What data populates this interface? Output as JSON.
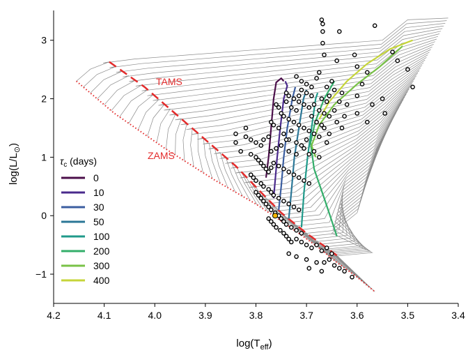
{
  "chart_data": {
    "type": "line",
    "xlabel": {
      "main": "log(T",
      "sub": "eff",
      "close": ")"
    },
    "ylabel": {
      "main": "log(L/L",
      "sub": "⊙",
      "close": ")"
    },
    "xlim": [
      4.2,
      3.4
    ],
    "ylim": [
      -1.5,
      3.45
    ],
    "xticks": [
      "4.2",
      "4.1",
      "4.0",
      "3.9",
      "3.8",
      "3.7",
      "3.6",
      "3.5",
      "3.4"
    ],
    "yticks": [
      "−1",
      "0",
      "1",
      "2",
      "3"
    ],
    "annotations": {
      "tams": "TAMS",
      "zams": "ZAMS"
    },
    "colors": {
      "boundary": "#e32b2b",
      "tracks": "#8a8a8a",
      "sun": "#f4b400"
    },
    "zams_line": [
      [
        4.155,
        2.3
      ],
      [
        4.08,
        1.75
      ],
      [
        3.98,
        1.15
      ],
      [
        3.88,
        0.6
      ],
      [
        3.8,
        0.2
      ],
      [
        3.74,
        -0.15
      ],
      [
        3.68,
        -0.52
      ],
      [
        3.64,
        -0.8
      ],
      [
        3.6,
        -1.05
      ],
      [
        3.565,
        -1.3
      ]
    ],
    "tams_line": [
      [
        4.09,
        2.63
      ],
      [
        4.02,
        2.2
      ],
      [
        3.96,
        1.75
      ],
      [
        3.9,
        1.3
      ],
      [
        3.84,
        0.85
      ],
      [
        3.79,
        0.4
      ],
      [
        3.75,
        0.05
      ],
      [
        3.7,
        -0.3
      ],
      [
        3.66,
        -0.55
      ],
      [
        3.64,
        -0.68
      ]
    ],
    "legend": {
      "title_symbol": "τ",
      "title_sub": "c",
      "title_rest": " (days)",
      "items": [
        {
          "label": "0",
          "color": "#4b0f4a"
        },
        {
          "label": "10",
          "color": "#4a2a8c"
        },
        {
          "label": "30",
          "color": "#3b5ea0"
        },
        {
          "label": "50",
          "color": "#2b7797"
        },
        {
          "label": "100",
          "color": "#1f9a8a"
        },
        {
          "label": "200",
          "color": "#33ae6a"
        },
        {
          "label": "300",
          "color": "#79c247"
        },
        {
          "label": "400",
          "color": "#c6d53a"
        }
      ]
    },
    "series": [
      {
        "name": "0",
        "points": [
          [
            3.78,
            0.65
          ],
          [
            3.775,
            1.0
          ],
          [
            3.77,
            1.5
          ],
          [
            3.765,
            2.0
          ],
          [
            3.76,
            2.28
          ],
          [
            3.75,
            2.35
          ],
          [
            3.745,
            2.3
          ]
        ]
      },
      {
        "name": "10",
        "points": [
          [
            3.765,
            0.3
          ],
          [
            3.762,
            0.6
          ],
          [
            3.758,
            1.0
          ],
          [
            3.752,
            1.5
          ],
          [
            3.745,
            2.0
          ],
          [
            3.738,
            2.22
          ],
          [
            3.742,
            2.3
          ]
        ]
      },
      {
        "name": "30",
        "points": [
          [
            3.755,
            0.1
          ],
          [
            3.75,
            0.5
          ],
          [
            3.745,
            1.0
          ],
          [
            3.738,
            1.5
          ],
          [
            3.728,
            2.0
          ],
          [
            3.722,
            2.2
          ]
        ]
      },
      {
        "name": "50",
        "points": [
          [
            3.735,
            -0.05
          ],
          [
            3.73,
            0.4
          ],
          [
            3.724,
            1.0
          ],
          [
            3.715,
            1.5
          ],
          [
            3.706,
            2.0
          ],
          [
            3.7,
            2.15
          ]
        ]
      },
      {
        "name": "100",
        "points": [
          [
            3.71,
            -0.2
          ],
          [
            3.705,
            0.4
          ],
          [
            3.698,
            1.0
          ],
          [
            3.69,
            1.5
          ],
          [
            3.682,
            2.0
          ],
          [
            3.678,
            2.1
          ]
        ]
      },
      {
        "name": "200",
        "points": [
          [
            3.64,
            -0.35
          ],
          [
            3.665,
            0.3
          ],
          [
            3.685,
            0.8
          ],
          [
            3.692,
            1.25
          ],
          [
            3.683,
            1.6
          ],
          [
            3.665,
            2.0
          ],
          [
            3.645,
            2.3
          ]
        ]
      },
      {
        "name": "300",
        "points": [
          [
            3.682,
            1.0
          ],
          [
            3.69,
            1.2
          ],
          [
            3.675,
            1.55
          ],
          [
            3.645,
            1.9
          ],
          [
            3.6,
            2.25
          ],
          [
            3.555,
            2.55
          ],
          [
            3.51,
            2.9
          ]
        ]
      },
      {
        "name": "400",
        "points": [
          [
            3.675,
            1.65
          ],
          [
            3.655,
            1.95
          ],
          [
            3.62,
            2.3
          ],
          [
            3.58,
            2.6
          ],
          [
            3.535,
            2.85
          ],
          [
            3.49,
            3.0
          ]
        ]
      }
    ],
    "stars": [
      [
        3.67,
        3.35
      ],
      [
        3.668,
        3.28
      ],
      [
        3.668,
        3.15
      ],
      [
        3.668,
        2.95
      ],
      [
        3.665,
        2.75
      ],
      [
        3.64,
        2.65
      ],
      [
        3.635,
        3.15
      ],
      [
        3.565,
        3.25
      ],
      [
        3.605,
        2.75
      ],
      [
        3.6,
        2.55
      ],
      [
        3.58,
        2.45
      ],
      [
        3.53,
        2.8
      ],
      [
        3.52,
        2.65
      ],
      [
        3.5,
        2.5
      ],
      [
        3.49,
        2.2
      ],
      [
        3.72,
        2.38
      ],
      [
        3.71,
        2.3
      ],
      [
        3.7,
        2.25
      ],
      [
        3.69,
        2.2
      ],
      [
        3.68,
        2.35
      ],
      [
        3.675,
        2.45
      ],
      [
        3.66,
        2.2
      ],
      [
        3.65,
        2.3
      ],
      [
        3.63,
        2.1
      ],
      [
        3.62,
        1.9
      ],
      [
        3.6,
        1.75
      ],
      [
        3.58,
        1.6
      ],
      [
        3.57,
        1.9
      ],
      [
        3.55,
        2.0
      ],
      [
        3.545,
        1.75
      ],
      [
        3.6,
        2.05
      ],
      [
        3.59,
        2.25
      ],
      [
        3.74,
        2.1
      ],
      [
        3.735,
        2.05
      ],
      [
        3.725,
        2.0
      ],
      [
        3.715,
        1.95
      ],
      [
        3.705,
        1.9
      ],
      [
        3.695,
        1.85
      ],
      [
        3.685,
        1.9
      ],
      [
        3.675,
        1.8
      ],
      [
        3.665,
        1.75
      ],
      [
        3.655,
        1.7
      ],
      [
        3.645,
        1.8
      ],
      [
        3.635,
        1.95
      ],
      [
        3.625,
        1.7
      ],
      [
        3.76,
        1.9
      ],
      [
        3.755,
        1.85
      ],
      [
        3.745,
        1.7
      ],
      [
        3.735,
        1.65
      ],
      [
        3.725,
        1.6
      ],
      [
        3.715,
        1.55
      ],
      [
        3.705,
        1.5
      ],
      [
        3.695,
        1.45
      ],
      [
        3.685,
        1.4
      ],
      [
        3.675,
        1.35
      ],
      [
        3.665,
        1.5
      ],
      [
        3.66,
        1.25
      ],
      [
        3.7,
        1.3
      ],
      [
        3.71,
        1.2
      ],
      [
        3.77,
        1.6
      ],
      [
        3.765,
        1.55
      ],
      [
        3.755,
        1.5
      ],
      [
        3.745,
        1.4
      ],
      [
        3.735,
        1.3
      ],
      [
        3.72,
        1.25
      ],
      [
        3.705,
        1.15
      ],
      [
        3.695,
        1.05
      ],
      [
        3.685,
        1.1
      ],
      [
        3.675,
        1.0
      ],
      [
        3.72,
        1.05
      ],
      [
        3.735,
        1.1
      ],
      [
        3.84,
        1.4
      ],
      [
        3.82,
        1.35
      ],
      [
        3.81,
        1.3
      ],
      [
        3.8,
        1.25
      ],
      [
        3.79,
        1.2
      ],
      [
        3.785,
        1.3
      ],
      [
        3.775,
        1.35
      ],
      [
        3.83,
        1.1
      ],
      [
        3.81,
        1.05
      ],
      [
        3.8,
        1.0
      ],
      [
        3.795,
        0.95
      ],
      [
        3.79,
        0.9
      ],
      [
        3.785,
        0.85
      ],
      [
        3.78,
        0.8
      ],
      [
        3.775,
        0.75
      ],
      [
        3.77,
        0.82
      ],
      [
        3.765,
        0.9
      ],
      [
        3.755,
        0.85
      ],
      [
        3.745,
        0.8
      ],
      [
        3.735,
        0.75
      ],
      [
        3.725,
        0.7
      ],
      [
        3.715,
        0.65
      ],
      [
        3.705,
        0.6
      ],
      [
        3.695,
        0.55
      ],
      [
        3.81,
        0.7
      ],
      [
        3.805,
        0.65
      ],
      [
        3.8,
        0.6
      ],
      [
        3.79,
        0.55
      ],
      [
        3.785,
        0.5
      ],
      [
        3.775,
        0.45
      ],
      [
        3.77,
        0.4
      ],
      [
        3.765,
        0.35
      ],
      [
        3.755,
        0.3
      ],
      [
        3.745,
        0.25
      ],
      [
        3.735,
        0.2
      ],
      [
        3.725,
        0.15
      ],
      [
        3.715,
        0.1
      ],
      [
        3.8,
        0.4
      ],
      [
        3.795,
        0.35
      ],
      [
        3.79,
        0.3
      ],
      [
        3.785,
        0.25
      ],
      [
        3.78,
        0.2
      ],
      [
        3.775,
        0.15
      ],
      [
        3.77,
        0.1
      ],
      [
        3.762,
        0.05
      ],
      [
        3.755,
        0.0
      ],
      [
        3.75,
        -0.05
      ],
      [
        3.745,
        -0.1
      ],
      [
        3.74,
        -0.15
      ],
      [
        3.73,
        -0.2
      ],
      [
        3.72,
        -0.25
      ],
      [
        3.71,
        -0.3
      ],
      [
        3.775,
        -0.05
      ],
      [
        3.77,
        -0.1
      ],
      [
        3.765,
        -0.15
      ],
      [
        3.76,
        -0.2
      ],
      [
        3.752,
        -0.25
      ],
      [
        3.745,
        -0.3
      ],
      [
        3.74,
        -0.35
      ],
      [
        3.735,
        -0.4
      ],
      [
        3.73,
        -0.45
      ],
      [
        3.72,
        -0.4
      ],
      [
        3.71,
        -0.45
      ],
      [
        3.7,
        -0.5
      ],
      [
        3.69,
        -0.55
      ],
      [
        3.68,
        -0.5
      ],
      [
        3.67,
        -0.6
      ],
      [
        3.66,
        -0.55
      ],
      [
        3.65,
        -0.65
      ],
      [
        3.735,
        -0.65
      ],
      [
        3.72,
        -0.7
      ],
      [
        3.7,
        -0.75
      ],
      [
        3.68,
        -0.8
      ],
      [
        3.665,
        -0.8
      ],
      [
        3.655,
        -0.75
      ],
      [
        3.645,
        -0.85
      ],
      [
        3.635,
        -0.9
      ],
      [
        3.625,
        -0.95
      ],
      [
        3.61,
        -1.05
      ],
      [
        3.695,
        -0.9
      ],
      [
        3.67,
        -0.95
      ],
      [
        3.67,
        2.0
      ],
      [
        3.66,
        1.95
      ],
      [
        3.655,
        2.05
      ],
      [
        3.645,
        2.15
      ],
      [
        3.69,
        2.05
      ],
      [
        3.7,
        2.1
      ],
      [
        3.71,
        2.15
      ],
      [
        3.715,
        2.05
      ],
      [
        3.72,
        1.8
      ],
      [
        3.73,
        1.85
      ],
      [
        3.74,
        1.95
      ],
      [
        3.75,
        1.75
      ],
      [
        3.82,
        1.5
      ],
      [
        3.84,
        1.25
      ],
      [
        3.77,
        1.1
      ],
      [
        3.76,
        1.15
      ],
      [
        3.75,
        1.2
      ],
      [
        3.74,
        1.3
      ],
      [
        3.73,
        1.45
      ],
      [
        3.68,
        1.6
      ],
      [
        3.69,
        1.7
      ],
      [
        3.67,
        1.55
      ],
      [
        3.655,
        1.4
      ],
      [
        3.64,
        1.6
      ],
      [
        3.63,
        1.5
      ]
    ],
    "sun": [
      3.762,
      0.0
    ]
  }
}
